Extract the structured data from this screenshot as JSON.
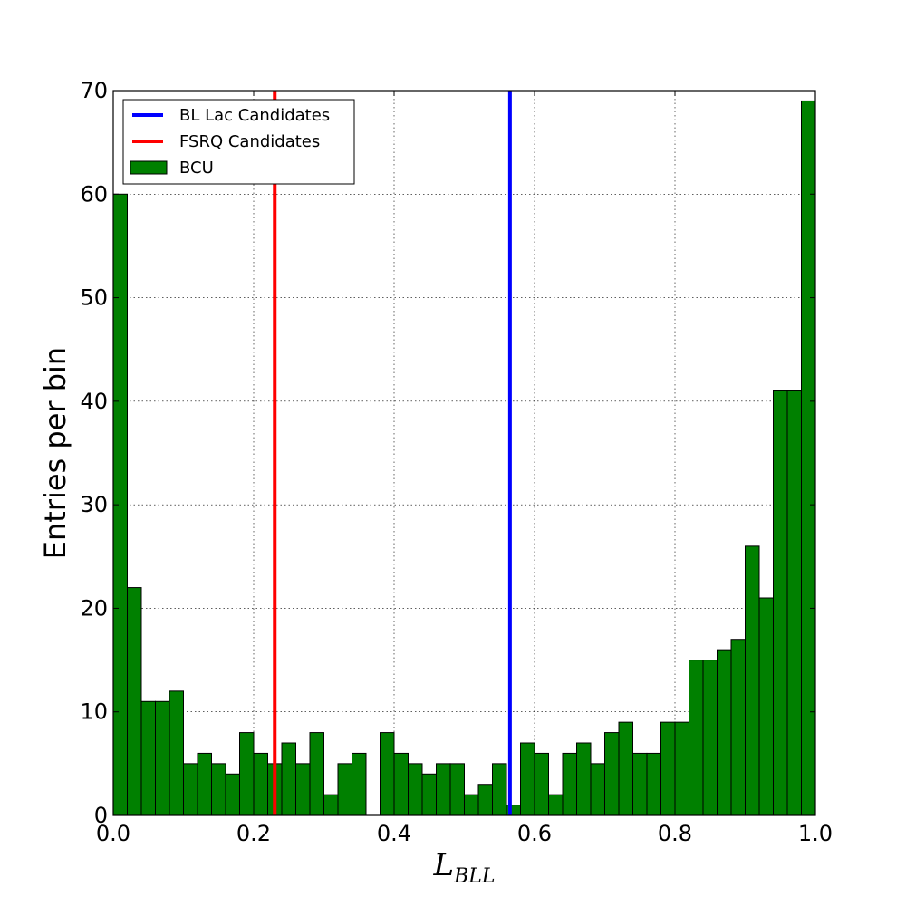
{
  "chart_data": {
    "type": "bar",
    "title": "",
    "xlabel_main": "L",
    "xlabel_sub": "BLL",
    "ylabel": "Entries per bin",
    "xlim": [
      0.0,
      1.0
    ],
    "ylim": [
      0,
      70
    ],
    "grid": true,
    "legend_position": "top-left",
    "x_ticks": [
      "0.0",
      "0.2",
      "0.4",
      "0.6",
      "0.8",
      "1.0"
    ],
    "y_ticks": [
      "0",
      "10",
      "20",
      "30",
      "40",
      "50",
      "60",
      "70"
    ],
    "bins": {
      "start": 0.0,
      "end": 1.0,
      "count": 50
    },
    "series": [
      {
        "name": "BCU",
        "kind": "histogram",
        "color": "#008000",
        "values": [
          60,
          22,
          11,
          11,
          12,
          5,
          6,
          5,
          4,
          8,
          6,
          5,
          7,
          5,
          8,
          2,
          5,
          6,
          0,
          8,
          6,
          5,
          4,
          5,
          5,
          2,
          3,
          5,
          1,
          7,
          6,
          2,
          6,
          7,
          5,
          8,
          9,
          6,
          6,
          9,
          9,
          15,
          15,
          16,
          17,
          26,
          21,
          41,
          41,
          69
        ]
      },
      {
        "name": "BL Lac Candidates",
        "kind": "vline",
        "color": "#0000ff",
        "x": 0.565
      },
      {
        "name": "FSRQ Candidates",
        "kind": "vline",
        "color": "#ff0000",
        "x": 0.23
      }
    ],
    "legend": [
      {
        "label": "BL Lac Candidates",
        "color": "#0000ff",
        "marker": "line"
      },
      {
        "label": "FSRQ Candidates",
        "color": "#ff0000",
        "marker": "line"
      },
      {
        "label": "BCU",
        "color": "#008000",
        "marker": "patch"
      }
    ]
  }
}
